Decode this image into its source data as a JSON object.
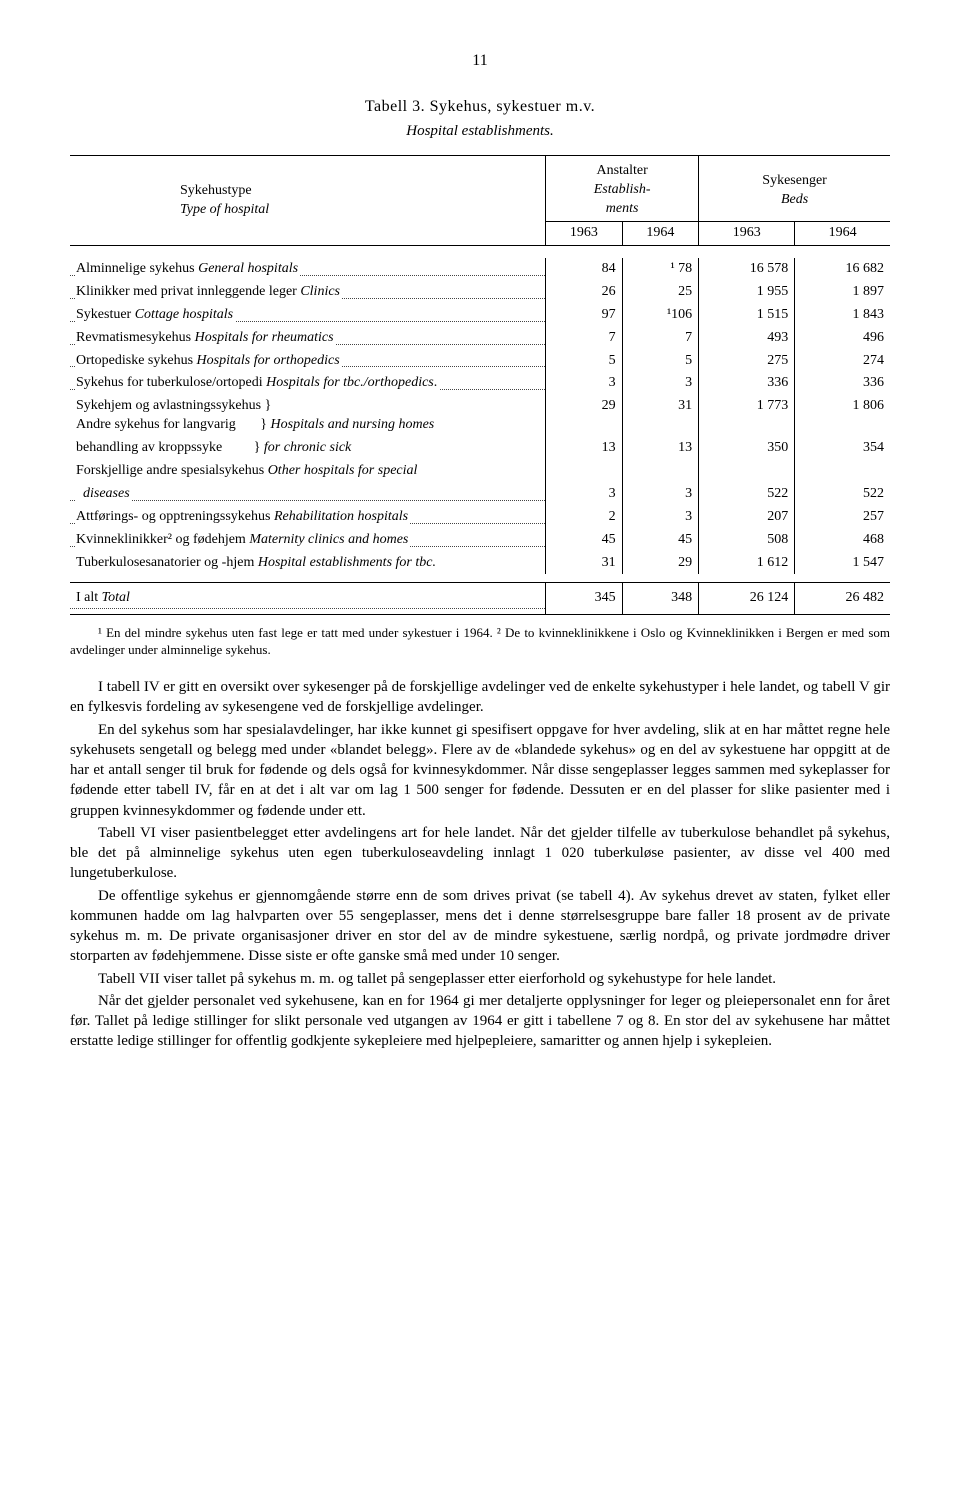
{
  "page_number": "11",
  "table_title": "Tabell 3. Sykehus, sykestuer m.v.",
  "table_subtitle": "Hospital establishments.",
  "header": {
    "col_left": "Sykehustype",
    "col_left_it": "Type of hospital",
    "anstalter": "Anstalter",
    "establ": "Establish-",
    "ments": "ments",
    "sykesenger": "Sykesenger",
    "beds": "Beds",
    "y1963": "1963",
    "y1964": "1964"
  },
  "rows": [
    {
      "label": "Alminnelige sykehus <i>General hospitals</i>",
      "a": "84",
      "b": "¹ 78",
      "c": "16 578",
      "d": "16 682"
    },
    {
      "label": "Klinikker med privat innleggende leger <i>Clinics</i>",
      "a": "26",
      "b": "25",
      "c": "1 955",
      "d": "1 897"
    },
    {
      "label": "Sykestuer <i>Cottage hospitals</i>",
      "a": "97",
      "b": "¹106",
      "c": "1 515",
      "d": "1 843"
    },
    {
      "label": "Revmatismesykehus <i>Hospitals for rheumatics</i>",
      "a": "7",
      "b": "7",
      "c": "493",
      "d": "496"
    },
    {
      "label": "Ortopediske sykehus <i>Hospitals for orthopedics</i>",
      "a": "5",
      "b": "5",
      "c": "275",
      "d": "274"
    },
    {
      "label": "Sykehus for tuberkulose/ortopedi <i>Hospitals for tbc./orthopedics</i>.",
      "a": "3",
      "b": "3",
      "c": "336",
      "d": "336"
    },
    {
      "label": "Sykehjem og avlastningssykehus }<br>Andre sykehus for langvarig&nbsp;&nbsp;&nbsp;&nbsp;&nbsp;&nbsp;&nbsp;} <i>Hospitals and nursing homes</i>",
      "a": "29",
      "b": "31",
      "c": "1 773",
      "d": "1 806",
      "nodots": true
    },
    {
      "label": "behandling av kroppssyke&nbsp;&nbsp;&nbsp;&nbsp;&nbsp;&nbsp;&nbsp;&nbsp;&nbsp;} <i>for chronic sick</i>",
      "a": "13",
      "b": "13",
      "c": "350",
      "d": "354",
      "nodots": true
    },
    {
      "label": "Forskjellige andre spesialsykehus <i>Other hospitals for special</i>",
      "a": "",
      "b": "",
      "c": "",
      "d": "",
      "nodots": true
    },
    {
      "label": "&nbsp;&nbsp;<i>diseases</i>",
      "a": "3",
      "b": "3",
      "c": "522",
      "d": "522"
    },
    {
      "label": "Attførings- og opptreningssykehus <i>Rehabilitation hospitals</i>",
      "a": "2",
      "b": "3",
      "c": "207",
      "d": "257"
    },
    {
      "label": "Kvinneklinikker² og fødehjem <i>Maternity clinics and homes</i>",
      "a": "45",
      "b": "45",
      "c": "508",
      "d": "468"
    },
    {
      "label": "Tuberkulosesanatorier og -hjem <i>Hospital establishments for tbc.</i>",
      "a": "31",
      "b": "29",
      "c": "1 612",
      "d": "1 547",
      "nodots": true
    }
  ],
  "total": {
    "label": "I alt <i>Total</i>",
    "a": "345",
    "b": "348",
    "c": "26 124",
    "d": "26 482"
  },
  "footnote": "¹ En del mindre sykehus uten fast lege er tatt med under sykestuer i 1964. ² De to kvinneklinikkene i Oslo og Kvinneklinikken i Bergen er med som avdelinger under alminnelige sykehus.",
  "paragraphs": [
    "I tabell IV er gitt en oversikt over sykesenger på de forskjellige avdelinger ved de enkelte sykehustyper i hele landet, og tabell V gir en fylkesvis fordeling av sykesengene ved de forskjellige avdelinger.",
    "En del sykehus som har spesialavdelinger, har ikke kunnet gi spesifisert oppgave for hver avdeling, slik at en har måttet regne hele sykehusets sengetall og belegg med under «blandet belegg». Flere av de «blandede sykehus» og en del av sykestuene har oppgitt at de har et antall senger til bruk for fødende og dels også for kvinnesykdommer. Når disse sengeplasser legges sammen med sykeplasser for fødende etter tabell IV, får en at det i alt var om lag 1 500 senger for fødende. Dessuten er en del plasser for slike pasienter med i gruppen kvinnesykdommer og fødende under ett.",
    "Tabell VI viser pasientbelegget etter avdelingens art for hele landet. Når det gjelder tilfelle av tuberkulose behandlet på sykehus, ble det på alminnelige sykehus uten egen tuberkuloseavdeling innlagt 1 020 tuberkuløse pasienter, av disse vel 400 med lungetuberkulose.",
    "De offentlige sykehus er gjennomgående større enn de som drives privat (se tabell 4). Av sykehus drevet av staten, fylket eller kommunen hadde om lag halvparten over 55 sengeplasser, mens det i denne størrelsesgruppe bare faller 18 prosent av de private sykehus m. m. De private organisasjoner driver en stor del av de mindre sykestuene, særlig nordpå, og private jordmødre driver storparten av fødehjemmene. Disse siste er ofte ganske små med under 10 senger.",
    "Tabell VII viser tallet på sykehus m. m. og tallet på sengeplasser etter eierforhold og sykehustype for hele landet.",
    "Når det gjelder personalet ved sykehusene, kan en for 1964 gi mer detaljerte opplysninger for leger og pleiepersonalet enn for året før. Tallet på ledige stillinger for slikt personale ved utgangen av 1964 er gitt i tabellene 7 og 8. En stor del av sykehusene har måttet erstatte ledige stillinger for offentlig godkjente sykepleiere med hjelpepleiere, samaritter og annen hjelp i sykepleien."
  ]
}
